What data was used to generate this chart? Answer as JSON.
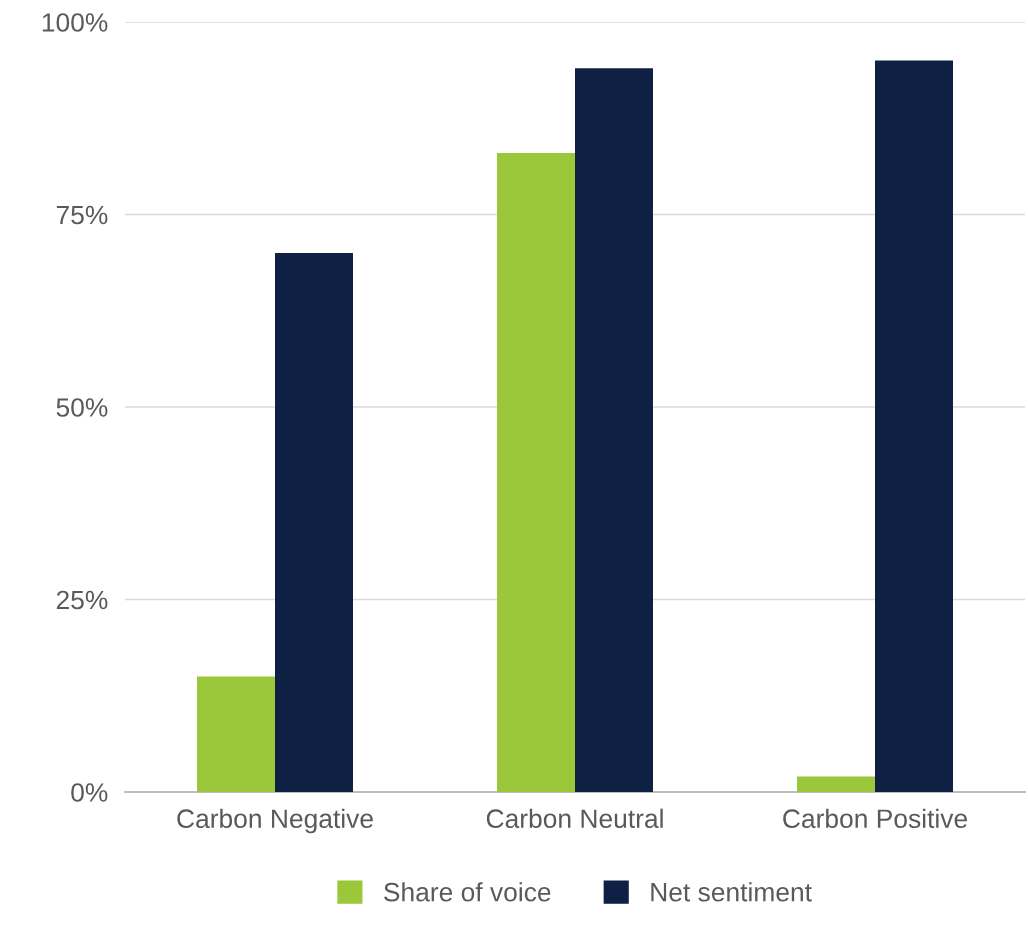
{
  "chart_data": {
    "type": "bar",
    "categories": [
      "Carbon Negative",
      "Carbon Neutral",
      "Carbon Positive"
    ],
    "series": [
      {
        "name": "Share of voice",
        "color": "#9bc83b",
        "values": [
          15,
          83,
          2
        ]
      },
      {
        "name": "Net sentiment",
        "color": "#0e2043",
        "values": [
          70,
          94,
          95
        ]
      }
    ],
    "ylim": [
      0,
      100
    ],
    "yticks": [
      {
        "value": 0,
        "label": "0%"
      },
      {
        "value": 25,
        "label": "25%"
      },
      {
        "value": 50,
        "label": "50%"
      },
      {
        "value": 75,
        "label": "75%"
      },
      {
        "value": 100,
        "label": "100%"
      }
    ],
    "grid": "y",
    "legend": "bottom"
  }
}
